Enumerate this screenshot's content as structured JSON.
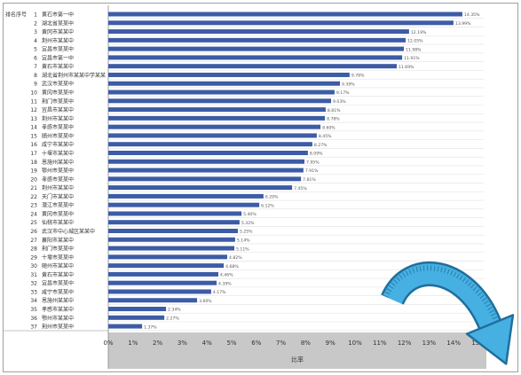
{
  "header": {
    "rank_label": "排名序号"
  },
  "colors": {
    "bar": "#3d5ca6",
    "axis_band": "#c8c8c8",
    "arrow_fill": "#46b0e2",
    "arrow_outline": "#1f6f9c"
  },
  "icons": {
    "overlay_arrow": "curved-arrow-icon"
  },
  "chart_data": {
    "type": "bar",
    "orientation": "horizontal",
    "title": "",
    "xlabel": "比率",
    "ylabel": "",
    "xlim": [
      0,
      15
    ],
    "grid": true,
    "legend": "none",
    "xticks": [
      "0%",
      "1%",
      "2%",
      "3%",
      "4%",
      "5%",
      "6%",
      "7%",
      "8%",
      "9%",
      "10%",
      "11%",
      "12%",
      "13%",
      "14%",
      "15%"
    ],
    "ranks": [
      "1",
      "2",
      "3",
      "4",
      "5",
      "6",
      "7",
      "8",
      "9",
      "10",
      "11",
      "12",
      "13",
      "14",
      "15",
      "16",
      "17",
      "18",
      "19",
      "20",
      "21",
      "22",
      "23",
      "24",
      "25",
      "26",
      "27",
      "28",
      "29",
      "30",
      "31",
      "32",
      "33",
      "34",
      "35",
      "36",
      "37"
    ],
    "categories": [
      "黄石市第一中",
      "湖北省某某中",
      "黄冈市某某中",
      "荆州市某某中",
      "宜昌市某某中",
      "宜昌市第一中",
      "黄石市某某中",
      "湖北省荆州市某某中学某某",
      "武汉市某某中",
      "黄冈市某某中",
      "荆门市某某中",
      "宜昌市某某中",
      "荆州市某某中",
      "孝感市某某中",
      "随州市某某中",
      "咸宁市某某中",
      "十堰市某某中",
      "恩施州某某中",
      "鄂州市某某中",
      "孝感市某某中",
      "荆州市某某中",
      "天门市某某中",
      "潜江市某某中",
      "黄冈市某某中",
      "仙桃市某某中",
      "武汉市中心城区某某中",
      "襄阳市某某中",
      "荆门市某某中",
      "十堰市某某中",
      "随州市某某中",
      "黄石市某某中",
      "宜昌市某某中",
      "咸宁市某某中",
      "恩施州某某中",
      "孝感市某某中",
      "鄂州市某某中",
      "荆州市某某中"
    ],
    "values": [
      14.35,
      13.99,
      12.19,
      12.05,
      11.98,
      11.91,
      11.69,
      9.78,
      9.39,
      9.17,
      9.03,
      8.81,
      8.78,
      8.6,
      8.45,
      8.27,
      8.09,
      7.95,
      7.91,
      7.81,
      7.45,
      6.29,
      6.12,
      5.4,
      5.32,
      5.25,
      5.14,
      5.11,
      4.82,
      4.68,
      4.46,
      4.39,
      4.17,
      3.6,
      2.34,
      2.27,
      1.37
    ],
    "value_labels": [
      "14.35%",
      "13.99%",
      "12.19%",
      "12.05%",
      "11.98%",
      "11.91%",
      "11.69%",
      "9.78%",
      "9.39%",
      "9.17%",
      "9.03%",
      "8.81%",
      "8.78%",
      "8.60%",
      "8.45%",
      "8.27%",
      "8.09%",
      "7.95%",
      "7.91%",
      "7.81%",
      "7.45%",
      "6.29%",
      "6.12%",
      "5.40%",
      "5.32%",
      "5.25%",
      "5.14%",
      "5.11%",
      "4.82%",
      "4.68%",
      "4.46%",
      "4.39%",
      "4.17%",
      "3.60%",
      "2.34%",
      "2.27%",
      "1.37%"
    ]
  }
}
